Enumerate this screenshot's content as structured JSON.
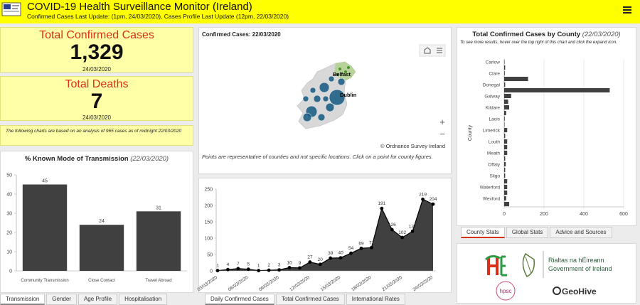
{
  "header": {
    "title": "COVID-19 Health Surveillance Monitor (Ireland)",
    "subtitle": "Confirmed Cases Last Update: (1pm, 24/03/2020), Cases Profile Last Update (12pm, 22/03/2020)"
  },
  "kpis": [
    {
      "label": "Total Confirmed Cases",
      "value": "1,329",
      "date": "24/03/2020"
    },
    {
      "label": "Total Deaths",
      "value": "7",
      "date": "24/03/2020"
    }
  ],
  "note": "The following charts are based on an analysis of 965 cases as of midnight 22/03/2020",
  "map": {
    "title": "Confirmed Cases: 22/03/2020",
    "labels": [
      "Belfast",
      "Dublin"
    ],
    "attribution": "© Ordnance Survey Ireland",
    "caption": "Points are representative of counties and not specific locations. Click on a point for county figures."
  },
  "tabs": {
    "left": [
      "Transmission",
      "Gender",
      "Age Profile",
      "Hospitalisation"
    ],
    "middle": [
      "Daily Confirmed Cases",
      "Total Confirmed Cases",
      "International Rates"
    ],
    "right": [
      "County Stats",
      "Global Stats",
      "Advice and Sources"
    ]
  },
  "logos": {
    "gov_irish": "Rialtas na hÉireann",
    "gov_english": "Government of Ireland",
    "hpsc": "hpsc",
    "geohive": "GeoHive"
  },
  "chart_data": [
    {
      "type": "bar",
      "title": "% Known Mode of Transmission",
      "subtitle": "(22/03/2020)",
      "categories": [
        "Community Transmission",
        "Close Contact",
        "Travel Abroad"
      ],
      "values": [
        45,
        24,
        31
      ],
      "color": "#404040",
      "ylim": [
        0,
        50
      ],
      "yticks": [
        0,
        10,
        20,
        30,
        40,
        50
      ],
      "grid": false
    },
    {
      "type": "area",
      "categories": [
        "03/03/2020",
        null,
        null,
        "06/03/2020",
        null,
        null,
        "09/03/2020",
        null,
        null,
        "12/03/2020",
        null,
        null,
        "15/03/2020",
        null,
        null,
        "18/03/2020",
        null,
        null,
        "21/03/2020",
        null,
        null,
        "24/03/2020"
      ],
      "values": [
        1,
        4,
        7,
        5,
        1,
        2,
        3,
        10,
        9,
        27,
        20,
        39,
        40,
        54,
        69,
        71,
        191,
        126,
        102,
        121,
        219,
        204
      ],
      "color": "#404040",
      "line_color": "#000000",
      "ylim": [
        0,
        250
      ],
      "yticks": [
        0,
        50,
        100,
        150,
        200,
        250
      ],
      "grid": false
    },
    {
      "type": "bar",
      "orientation": "horizontal",
      "title": "Total Confirmed Cases by County",
      "subtitle": "(22/03/2020)",
      "note": "To see more results, hover over the top right of this chart and click the expand icon.",
      "y_label": "County",
      "categories": [
        "Carlow",
        null,
        "Clare",
        null,
        "Donegal",
        null,
        "Galway",
        null,
        "Kildare",
        null,
        "Laois",
        null,
        "Limerick",
        null,
        "Louth",
        null,
        "Meath",
        null,
        "Offaly",
        null,
        "Sligo",
        null,
        "Waterford",
        null,
        "Wexford",
        null
      ],
      "values": [
        2,
        5,
        3,
        120,
        5,
        530,
        35,
        20,
        25,
        10,
        3,
        2,
        15,
        5,
        15,
        15,
        15,
        5,
        8,
        5,
        5,
        15,
        15,
        15,
        10,
        25
      ],
      "color": "#404040",
      "xlim": [
        0,
        600
      ],
      "xticks": [
        0,
        200,
        400,
        600
      ],
      "grid": true
    }
  ]
}
